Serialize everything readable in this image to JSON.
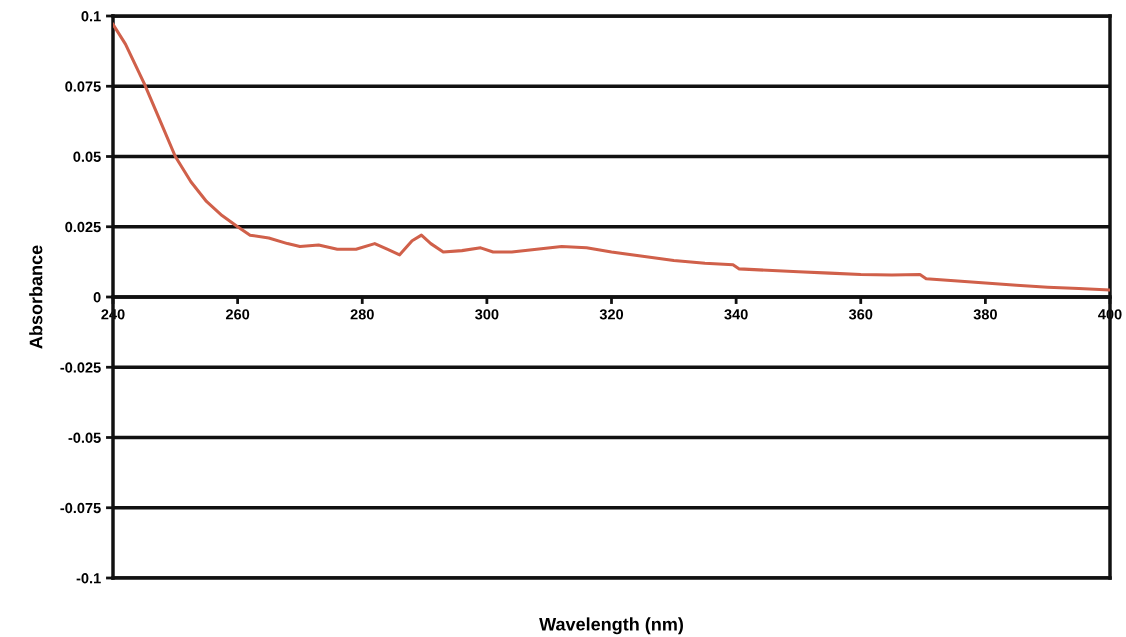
{
  "chart_data": {
    "type": "line",
    "xlabel": "Wavelength (nm)",
    "ylabel": "Absorbance",
    "x": [
      240,
      242,
      245,
      247.5,
      250,
      252.5,
      255,
      257.5,
      260,
      262,
      265,
      268,
      270,
      273,
      276,
      279,
      282,
      284,
      286,
      288,
      289.5,
      291,
      293,
      296,
      299,
      301,
      304,
      308,
      312,
      316,
      320,
      325,
      330,
      335,
      339.5,
      340.5,
      345,
      350,
      355,
      360,
      365,
      369.5,
      370.5,
      375,
      380,
      385,
      390,
      395,
      400
    ],
    "series": [
      {
        "color": "#d0604a",
        "values": [
          0.097,
          0.09,
          0.076,
          0.063,
          0.05,
          0.041,
          0.034,
          0.029,
          0.025,
          0.022,
          0.021,
          0.019,
          0.018,
          0.0185,
          0.017,
          0.017,
          0.019,
          0.017,
          0.015,
          0.02,
          0.022,
          0.019,
          0.016,
          0.0165,
          0.0175,
          0.016,
          0.016,
          0.017,
          0.018,
          0.0175,
          0.016,
          0.0145,
          0.013,
          0.012,
          0.0115,
          0.01,
          0.0095,
          0.009,
          0.0085,
          0.008,
          0.0078,
          0.008,
          0.0065,
          0.0058,
          0.005,
          0.0042,
          0.0035,
          0.003,
          0.0025
        ]
      }
    ],
    "xlim": [
      240,
      400
    ],
    "xticks": [
      240,
      260,
      280,
      300,
      320,
      340,
      360,
      380,
      400
    ],
    "ylim": [
      -0.1,
      0.1
    ],
    "yticks": [
      -0.1,
      -0.075,
      -0.05,
      -0.025,
      0,
      0.025,
      0.05,
      0.075,
      0.1
    ],
    "grid": "y",
    "legend": false,
    "marker": "none",
    "line_style": "solid"
  }
}
